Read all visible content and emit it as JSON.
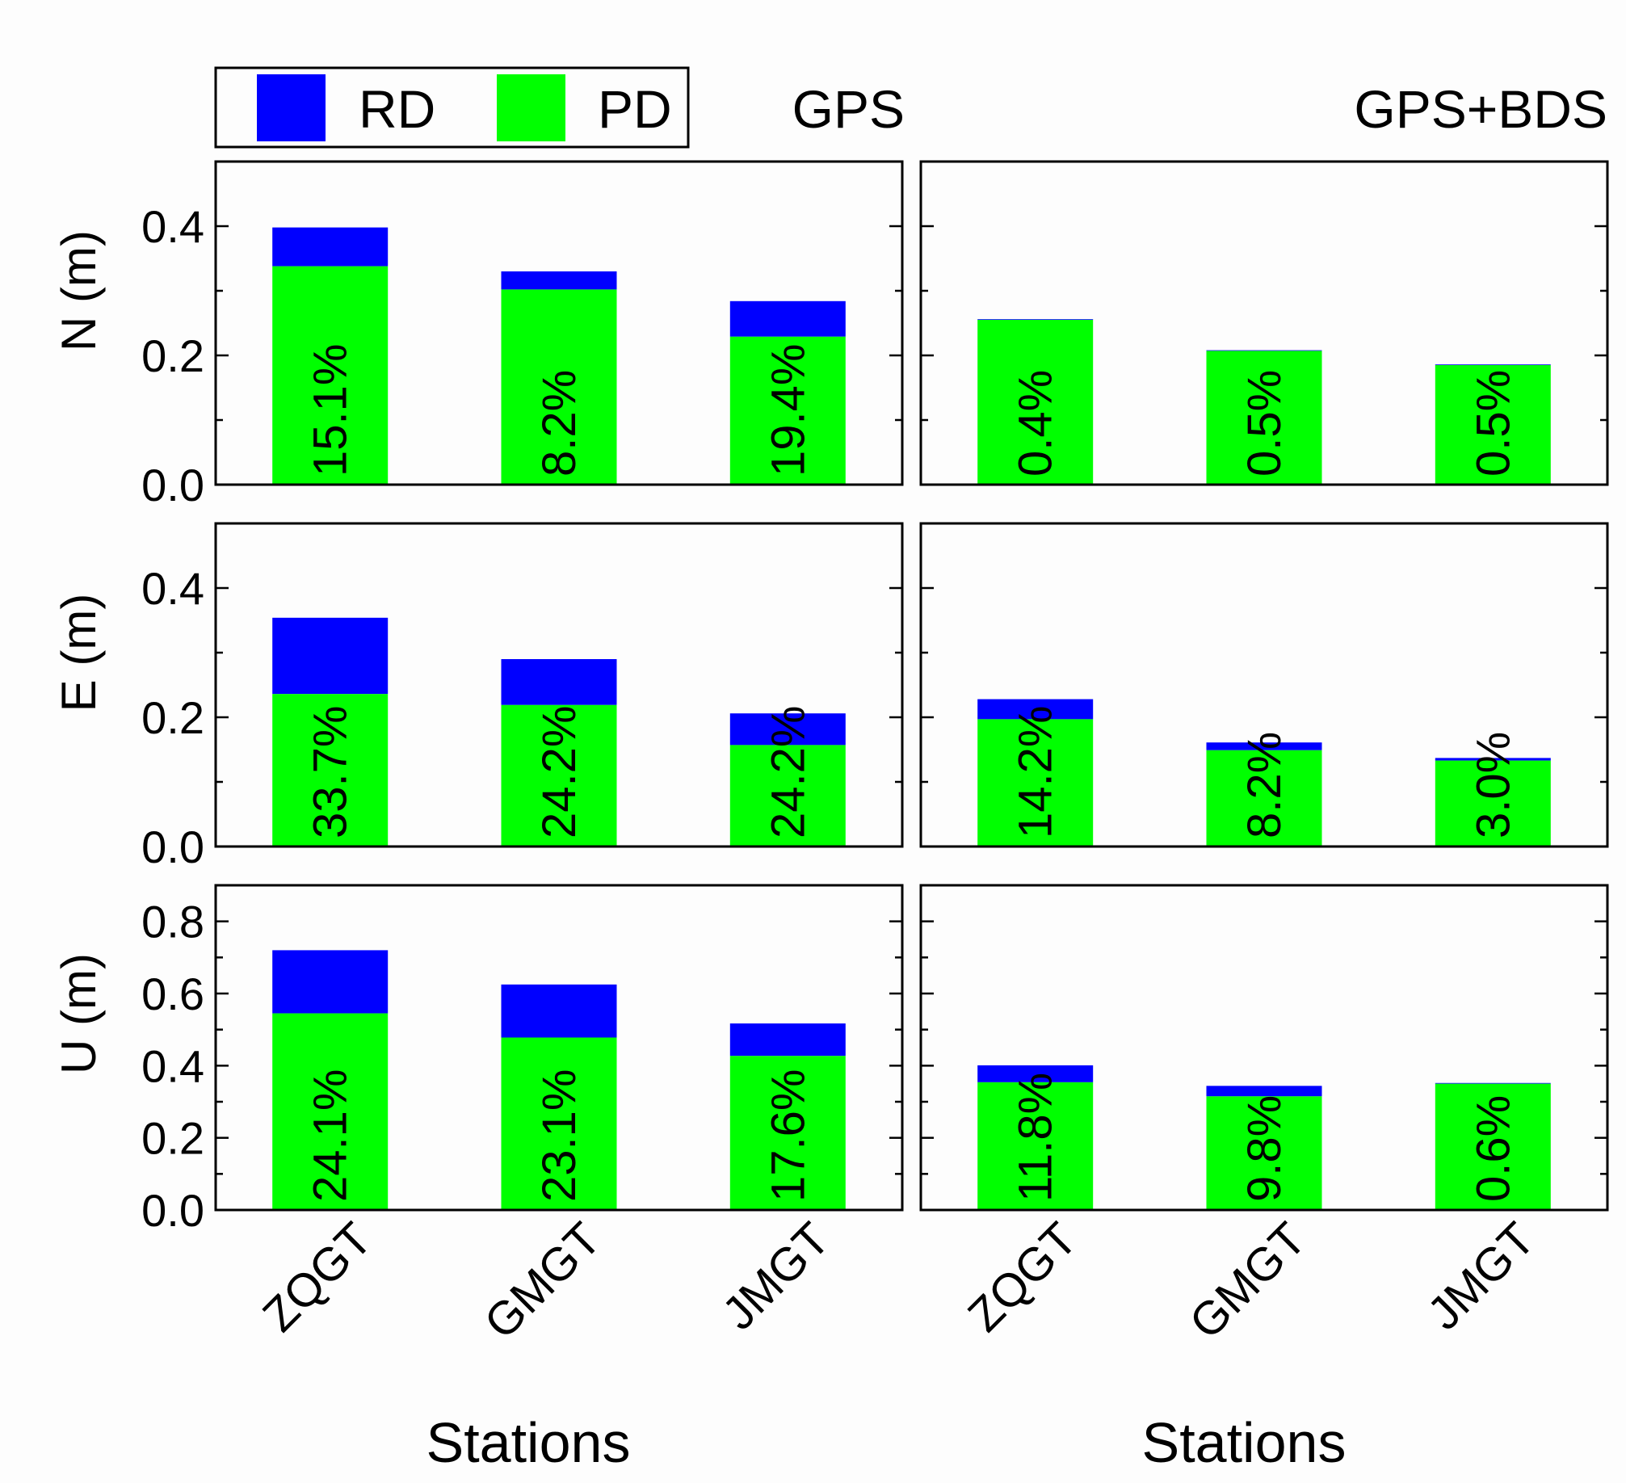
{
  "legend": {
    "items": [
      {
        "label": "RD",
        "color": "#0000ff"
      },
      {
        "label": "PD",
        "color": "#00ff00"
      }
    ]
  },
  "columns": [
    {
      "title": "GPS",
      "xlabel": "Stations"
    },
    {
      "title": "GPS+BDS",
      "xlabel": "Stations"
    }
  ],
  "chart_data": [
    {
      "type": "bar",
      "stacked": true,
      "panel": "N-GPS",
      "title": "GPS",
      "ylabel": "N (m)",
      "xlabel": "Stations",
      "categories": [
        "ZQGT",
        "GMGT",
        "JMGT"
      ],
      "ylim": [
        0,
        0.5
      ],
      "yticks": [
        "0.0",
        "0.2",
        "0.4"
      ],
      "series": [
        {
          "name": "PD",
          "color": "#00ff00",
          "values": [
            0.338,
            0.302,
            0.229
          ]
        },
        {
          "name": "RD",
          "color": "#0000ff",
          "values": [
            0.06,
            0.028,
            0.055
          ]
        }
      ],
      "annotations": [
        "15.1%",
        "8.2%",
        "19.4%"
      ]
    },
    {
      "type": "bar",
      "stacked": true,
      "panel": "N-GPS+BDS",
      "title": "GPS+BDS",
      "ylabel": "",
      "xlabel": "Stations",
      "categories": [
        "ZQGT",
        "GMGT",
        "JMGT"
      ],
      "ylim": [
        0,
        0.5
      ],
      "series": [
        {
          "name": "PD",
          "color": "#00ff00",
          "values": [
            0.255,
            0.207,
            0.185
          ]
        },
        {
          "name": "RD",
          "color": "#0000ff",
          "values": [
            0.001,
            0.001,
            0.001
          ]
        }
      ],
      "annotations": [
        "0.4%",
        "0.5%",
        "0.5%"
      ]
    },
    {
      "type": "bar",
      "stacked": true,
      "panel": "E-GPS",
      "title": "GPS",
      "ylabel": "E (m)",
      "xlabel": "Stations",
      "categories": [
        "ZQGT",
        "GMGT",
        "JMGT"
      ],
      "ylim": [
        0,
        0.5
      ],
      "yticks": [
        "0.0",
        "0.2",
        "0.4"
      ],
      "series": [
        {
          "name": "PD",
          "color": "#00ff00",
          "values": [
            0.236,
            0.219,
            0.157
          ]
        },
        {
          "name": "RD",
          "color": "#0000ff",
          "values": [
            0.118,
            0.071,
            0.049
          ]
        }
      ],
      "annotations": [
        "33.7%",
        "24.2%",
        "24.2%"
      ]
    },
    {
      "type": "bar",
      "stacked": true,
      "panel": "E-GPS+BDS",
      "title": "GPS+BDS",
      "ylabel": "",
      "xlabel": "Stations",
      "categories": [
        "ZQGT",
        "GMGT",
        "JMGT"
      ],
      "ylim": [
        0,
        0.5
      ],
      "series": [
        {
          "name": "PD",
          "color": "#00ff00",
          "values": [
            0.197,
            0.149,
            0.133
          ]
        },
        {
          "name": "RD",
          "color": "#0000ff",
          "values": [
            0.031,
            0.012,
            0.004
          ]
        }
      ],
      "annotations": [
        "14.2%",
        "8.2%",
        "3.0%"
      ]
    },
    {
      "type": "bar",
      "stacked": true,
      "panel": "U-GPS",
      "title": "GPS",
      "ylabel": "U (m)",
      "xlabel": "Stations",
      "categories": [
        "ZQGT",
        "GMGT",
        "JMGT"
      ],
      "ylim": [
        0,
        0.9
      ],
      "yticks": [
        "0.0",
        "0.2",
        "0.4",
        "0.6",
        "0.8"
      ],
      "series": [
        {
          "name": "PD",
          "color": "#00ff00",
          "values": [
            0.545,
            0.478,
            0.427
          ]
        },
        {
          "name": "RD",
          "color": "#0000ff",
          "values": [
            0.175,
            0.147,
            0.09
          ]
        }
      ],
      "annotations": [
        "24.1%",
        "23.1%",
        "17.6%"
      ]
    },
    {
      "type": "bar",
      "stacked": true,
      "panel": "U-GPS+BDS",
      "title": "GPS+BDS",
      "ylabel": "",
      "xlabel": "Stations",
      "categories": [
        "ZQGT",
        "GMGT",
        "JMGT"
      ],
      "ylim": [
        0,
        0.9
      ],
      "series": [
        {
          "name": "PD",
          "color": "#00ff00",
          "values": [
            0.354,
            0.315,
            0.35
          ]
        },
        {
          "name": "RD",
          "color": "#0000ff",
          "values": [
            0.047,
            0.029,
            0.002
          ]
        }
      ],
      "annotations": [
        "11.8%",
        "9.8%",
        "0.6%"
      ]
    }
  ]
}
